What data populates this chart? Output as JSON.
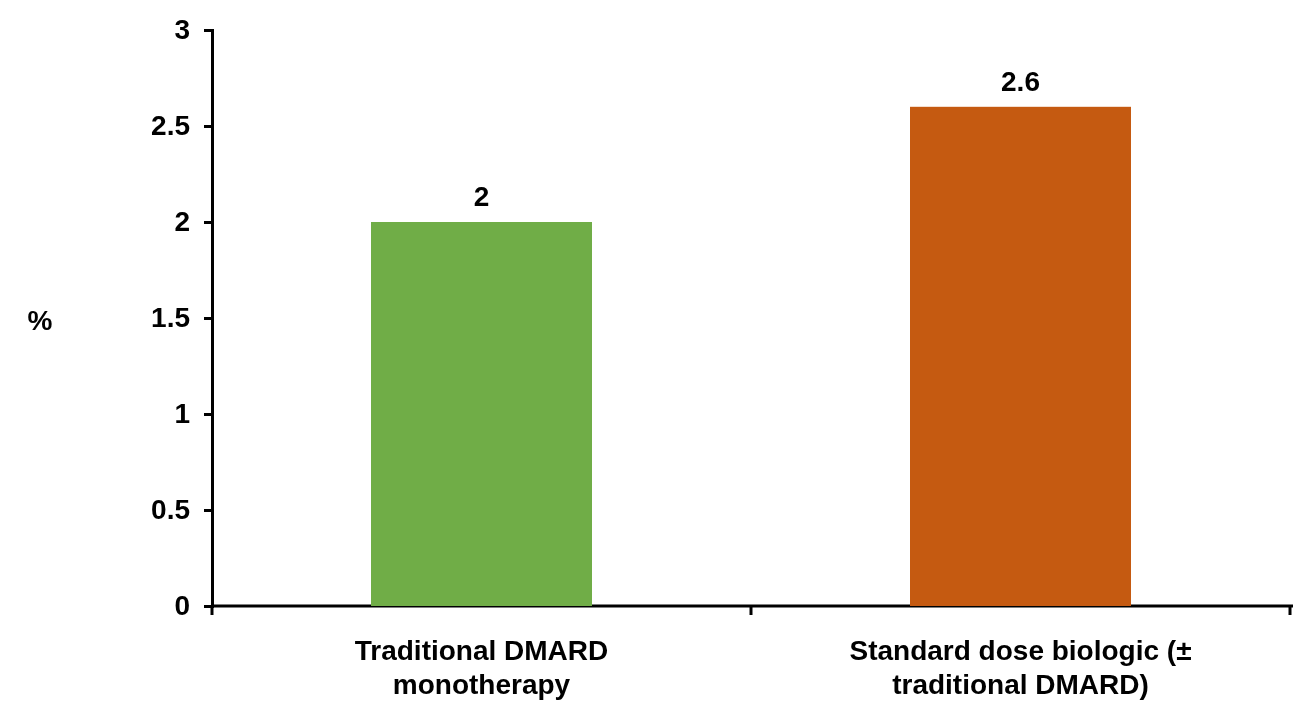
{
  "chart_data": {
    "type": "bar",
    "ylabel": "%",
    "categories": [
      "Traditional DMARD monotherapy",
      "Standard dose biologic (± traditional DMARD)"
    ],
    "values": [
      2,
      2.6
    ],
    "colors": [
      "#70ad47",
      "#c55a11"
    ],
    "ylim": [
      0,
      3
    ],
    "yticks": [
      0,
      0.5,
      1,
      1.5,
      2,
      2.5,
      3
    ],
    "grid": false,
    "data_labels": true
  }
}
